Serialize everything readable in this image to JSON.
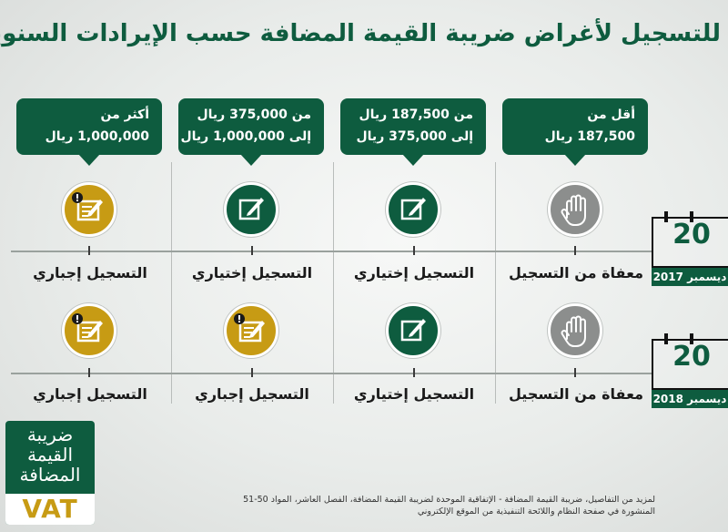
{
  "title": "للتسجيل لأغراض ضريبة القيمة المضافة حسب الإيرادات السنوية",
  "columns": [
    {
      "line1": "أقل من",
      "line2": "187,500 ريال"
    },
    {
      "line1": "من 187,500 ريال",
      "line2": "إلى 375,000 ريال"
    },
    {
      "line1": "من 375,000 ريال",
      "line2": "إلى 1,000,000 ريال"
    },
    {
      "line1": "أكثر من",
      "line2": "1,000,000 ريال"
    }
  ],
  "rows": [
    {
      "date_day": "20",
      "date_month": "ديسمبر 2017",
      "statuses": [
        "معفاة من التسجيل",
        "التسجيل إختياري",
        "التسجيل إختياري",
        "التسجيل إجباري"
      ],
      "icons": [
        "hand-icon",
        "pen-square-icon",
        "pen-square-icon",
        "mandatory-form-icon"
      ]
    },
    {
      "date_day": "20",
      "date_month": "ديسمبر 2018",
      "statuses": [
        "معفاة من التسجيل",
        "التسجيل إختياري",
        "التسجيل إجباري",
        "التسجيل إجباري"
      ],
      "icons": [
        "hand-icon",
        "pen-square-icon",
        "mandatory-form-icon",
        "mandatory-form-icon"
      ]
    }
  ],
  "logo": {
    "line1": "ضريبة",
    "line2": "القيمة",
    "line3": "المضافة",
    "vat": "VAT"
  },
  "footnote": {
    "line1": "لمزيد من التفاصيل، ضريبة القيمة المضافة - الإتفاقية الموحدة لضريبة القيمة المضافة، الفصل العاشر، المواد 50-51",
    "line2": "المنشورة في صفحة النظام واللائحة التنفيذية من الموقع الإلكتروني"
  },
  "colors": {
    "primary": "#0e5c3f",
    "gold": "#c79b14",
    "gray": "#8c8e8d"
  }
}
